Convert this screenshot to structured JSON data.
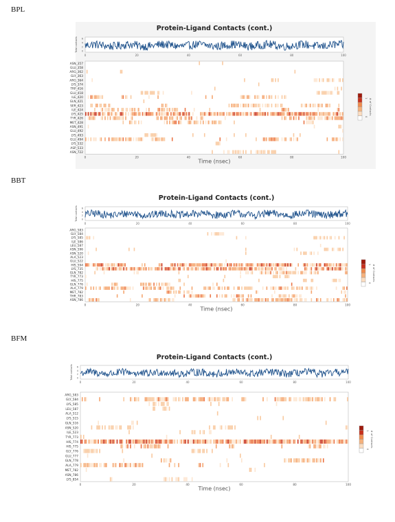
{
  "chart_data": [
    {
      "type": "heatmap",
      "label": "BPL",
      "title": "Protein-Ligand Contacts (cont.)",
      "xlabel": "Time (nsec)",
      "ylabel_top": "Total contacts",
      "legend_label": "# of Contacts",
      "xticks": [
        "0",
        "20",
        "40",
        "60",
        "80",
        "100"
      ],
      "top_yticks": [
        "0",
        "2",
        "4",
        "6"
      ],
      "legend_ticks": [
        "0",
        "1"
      ],
      "residues": [
        "ASN_357",
        "GLU_358",
        "ARG_362",
        "GLY_363",
        "ARG_364",
        "LYS_374",
        "TRP_416",
        "GLU_418",
        "ILE_420",
        "GLN_421",
        "SER_423",
        "ILE_424",
        "LYS_425",
        "TYR_426",
        "MET_428",
        "ASN_491",
        "GLU_492",
        "LYS_493",
        "GLU_494",
        "LYS_532",
        "ASP_533",
        "ASN_722"
      ],
      "occupancy": [
        0.02,
        0.02,
        0.03,
        0.04,
        0.1,
        0.03,
        0.05,
        0.06,
        0.25,
        0.08,
        0.18,
        0.3,
        0.85,
        0.4,
        0.22,
        0.06,
        0.08,
        0.12,
        0.45,
        0.1,
        0.04,
        0.02
      ]
    },
    {
      "type": "heatmap",
      "label": "BBT",
      "title": "Protein-Ligand Contacts (cont.)",
      "xlabel": "Time (nsec)",
      "ylabel_top": "Total contacts",
      "legend_label": "# of Contacts",
      "xticks": [
        "0",
        "20",
        "40",
        "60",
        "80",
        "100"
      ],
      "top_yticks": [
        "0",
        "2",
        "4",
        "6"
      ],
      "legend_ticks": [
        "0",
        "1"
      ],
      "residues": [
        "ARG_583",
        "GLY_584",
        "LYS_585",
        "ILE_586",
        "LEU_587",
        "ASN_596",
        "ASN_520",
        "ALA_523",
        "GLU_522",
        "HIS_594",
        "LYS_735",
        "GLN_782",
        "TYR_773",
        "HIS_775",
        "GLN_776",
        "ALA_779",
        "MET_782",
        "THR_783",
        "ASN_786"
      ],
      "occupancy": [
        0.03,
        0.08,
        0.06,
        0.03,
        0.03,
        0.12,
        0.1,
        0.05,
        0.08,
        0.75,
        0.85,
        0.3,
        0.12,
        0.08,
        0.15,
        0.35,
        0.4,
        0.35,
        0.55
      ]
    },
    {
      "type": "heatmap",
      "label": "BFM",
      "title": "Protein-Ligand Contacts (cont.)",
      "xlabel": "Time (nsec)",
      "ylabel_top": "Total contacts",
      "legend_label": "# of Contacts",
      "xticks": [
        "0",
        "20",
        "40",
        "60",
        "80",
        "100"
      ],
      "top_yticks": [
        "0",
        "2",
        "4",
        "6"
      ],
      "legend_ticks": [
        "0",
        "1"
      ],
      "residues": [
        "ARG_583",
        "GLY_584",
        "LYS_585",
        "LEU_587",
        "ALA_512",
        "LYS_515",
        "GLN_516",
        "ASN_520",
        "ILE_523",
        "TYR_773",
        "HIS_774",
        "HIS_775",
        "GLY_776",
        "GLU_777",
        "GLN_778",
        "ALA_779",
        "MET_782",
        "ASN_786",
        "LYS_854"
      ],
      "occupancy": [
        0.03,
        0.55,
        0.1,
        0.03,
        0.05,
        0.06,
        0.1,
        0.08,
        0.05,
        0.06,
        0.85,
        0.2,
        0.08,
        0.1,
        0.3,
        0.45,
        0.05,
        0.04,
        0.03
      ]
    }
  ]
}
